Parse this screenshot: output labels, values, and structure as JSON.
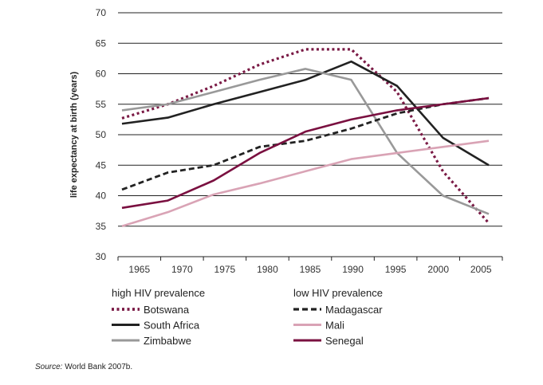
{
  "chart_data": {
    "type": "line",
    "title": "",
    "xlabel": "",
    "ylabel": "life expectancy at birth (years)",
    "ylim": [
      30,
      70
    ],
    "yticks": [
      "30",
      "35",
      "40",
      "45",
      "50",
      "55",
      "60",
      "65",
      "70"
    ],
    "x": [
      1965,
      1970,
      1975,
      1980,
      1985,
      1990,
      1995,
      2000,
      2005
    ],
    "xticks": [
      "1965",
      "1970",
      "1975",
      "1980",
      "1985",
      "1990",
      "1995",
      "2000",
      "2005"
    ],
    "grid": "horizontal",
    "legend_groups": [
      {
        "title": "high HIV prevalence",
        "series": [
          "Botswana",
          "South Africa",
          "Zimbabwe"
        ]
      },
      {
        "title": "low HIV prevalence",
        "series": [
          "Madagascar",
          "Mali",
          "Senegal"
        ]
      }
    ],
    "series": [
      {
        "name": "Botswana",
        "color": "#7a1a45",
        "style": "dotted",
        "values": [
          52.7,
          55,
          58,
          61.5,
          64,
          64,
          57,
          44,
          35.5
        ]
      },
      {
        "name": "South Africa",
        "color": "#222222",
        "style": "solid",
        "values": [
          51.8,
          52.8,
          55,
          57,
          59,
          62,
          58,
          49.5,
          45
        ]
      },
      {
        "name": "Zimbabwe",
        "color": "#999999",
        "style": "solid",
        "values": [
          54,
          55,
          57,
          59,
          60.8,
          59,
          47,
          40,
          37
        ]
      },
      {
        "name": "Madagascar",
        "color": "#222222",
        "style": "dashed",
        "values": [
          41,
          43.8,
          45,
          48,
          49,
          51,
          53.5,
          55,
          56
        ]
      },
      {
        "name": "Mali",
        "color": "#d9a3b5",
        "style": "solid",
        "values": [
          35,
          37.3,
          40.2,
          42,
          44,
          46,
          47,
          48,
          49
        ]
      },
      {
        "name": "Senegal",
        "color": "#7a1040",
        "style": "solid",
        "values": [
          38,
          39.2,
          42.5,
          47,
          50.5,
          52.5,
          54,
          55,
          56
        ]
      }
    ]
  },
  "source": {
    "label": "Source:",
    "text": " World Bank 2007b."
  }
}
